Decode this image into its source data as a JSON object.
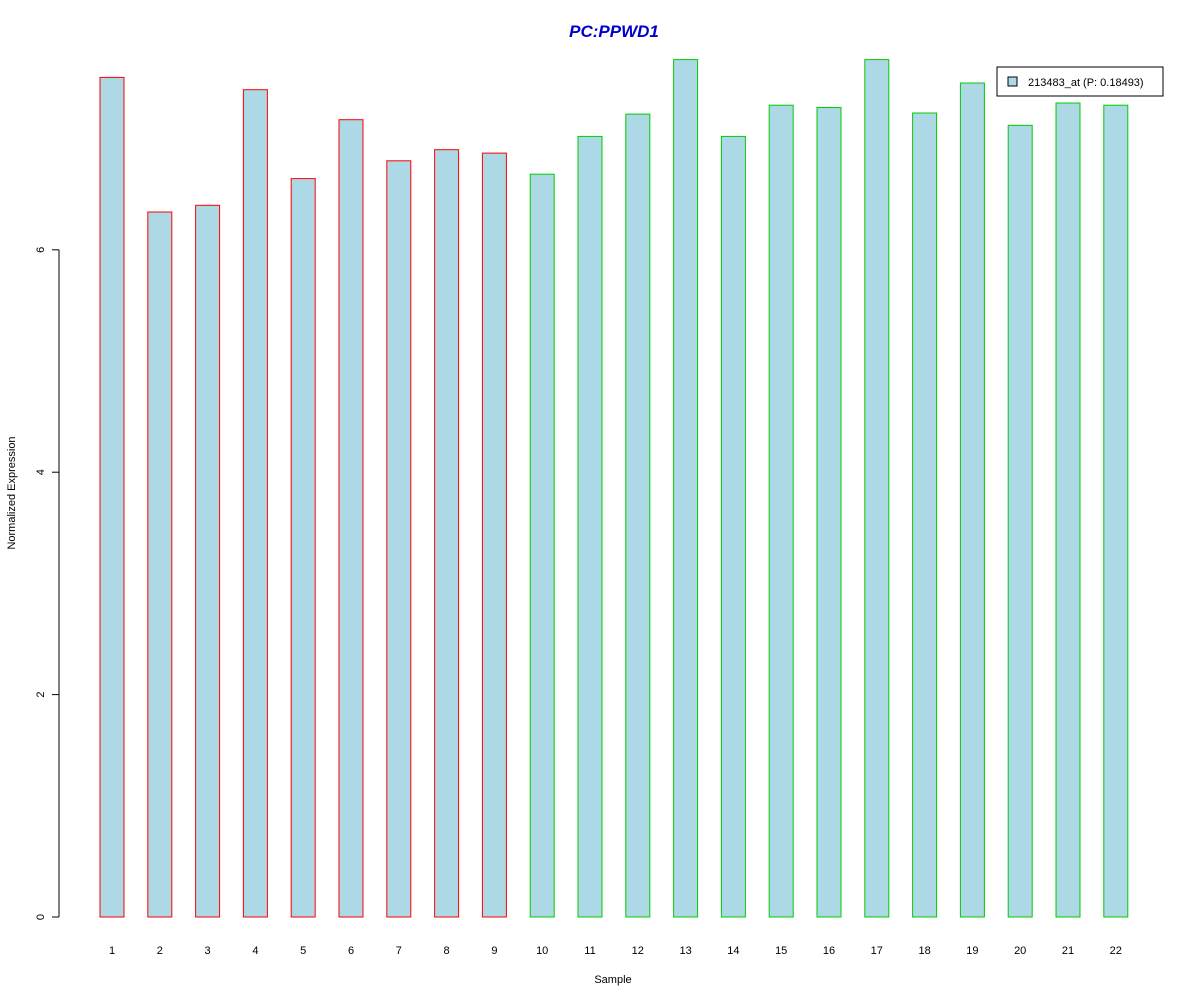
{
  "chart_data": {
    "type": "bar",
    "title": "PC:PPWD1",
    "xlabel": "Sample",
    "ylabel": "Normalized Expression",
    "categories": [
      "1",
      "2",
      "3",
      "4",
      "5",
      "6",
      "7",
      "8",
      "9",
      "10",
      "11",
      "12",
      "13",
      "14",
      "15",
      "16",
      "17",
      "18",
      "19",
      "20",
      "21",
      "22"
    ],
    "series": [
      {
        "name": "213483_at (P: 0.18493)",
        "values": [
          7.55,
          6.34,
          6.4,
          7.44,
          6.64,
          7.17,
          6.8,
          6.9,
          6.87,
          6.68,
          7.02,
          7.22,
          7.71,
          7.02,
          7.3,
          7.28,
          7.71,
          7.23,
          7.5,
          7.12,
          7.32,
          7.3
        ]
      }
    ],
    "group_of_sample": [
      "red",
      "red",
      "red",
      "red",
      "red",
      "red",
      "red",
      "red",
      "red",
      "green",
      "green",
      "green",
      "green",
      "green",
      "green",
      "green",
      "green",
      "green",
      "green",
      "green",
      "green",
      "green"
    ],
    "ylim": [
      0,
      7.8
    ],
    "yticks": [
      0,
      2,
      4,
      6
    ],
    "grid": false,
    "legend_position": "top-right",
    "colors": {
      "title": "#0000cc",
      "bar_fill": "#add8e6",
      "border_red": "#ff0000",
      "border_green": "#00cc00",
      "axis": "#000000",
      "legend_border": "#000000"
    }
  }
}
